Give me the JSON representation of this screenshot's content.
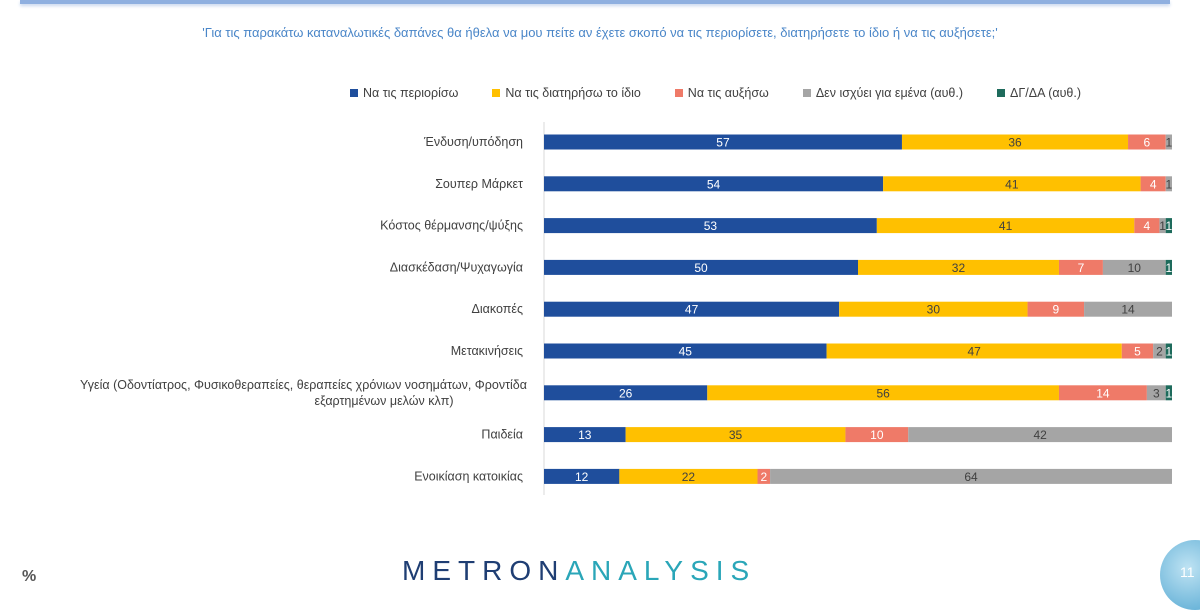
{
  "header": {
    "title": "'Για τις παρακάτω καταναλωτικές δαπάνες θα ήθελα να μου πείτε αν έχετε σκοπό να τις περιορίσετε, διατηρήσετε το ίδιο ή να τις αυξήσετε;'"
  },
  "footer": {
    "logo_a": "METRON",
    "logo_b": "ANALYSIS",
    "percent_symbol": "%",
    "page_number": "11"
  },
  "chart_data": {
    "type": "bar",
    "orientation": "horizontal",
    "stacked": true,
    "legend_position": "top",
    "grid": false,
    "xlim": [
      0,
      100
    ],
    "categories": [
      "Ένδυση/υπόδηση",
      "Σουπερ Μάρκετ",
      "Κόστος θέρμανσης/ψύξης",
      "Διασκέδαση/Ψυχαγωγία",
      "Διακοπές",
      "Μετακινήσεις",
      "Υγεία (Οδοντίατρος, Φυσικοθεραπείες, θεραπείες χρόνιων νοσημάτων, Φροντίδα εξαρτημένων μελών κλπ)",
      "Παιδεία",
      "Ενοικίαση κατοικίας"
    ],
    "series": [
      {
        "name": "Να τις περιορίσω",
        "color": "#1f4e9c",
        "label_color": "#ffffff",
        "values": [
          57,
          54,
          53,
          50,
          47,
          45,
          26,
          13,
          12
        ]
      },
      {
        "name": "Να τις διατηρήσω το ίδιο",
        "color": "#ffc000",
        "label_color": "#404040",
        "values": [
          36,
          41,
          41,
          32,
          30,
          47,
          56,
          35,
          22
        ]
      },
      {
        "name": "Να τις αυξήσω",
        "color": "#ef7a68",
        "label_color": "#ffffff",
        "values": [
          6,
          4,
          4,
          7,
          9,
          5,
          14,
          10,
          2
        ]
      },
      {
        "name": "Δεν ισχύει για εμένα (αυθ.)",
        "color": "#a5a5a5",
        "label_color": "#404040",
        "values": [
          1,
          1,
          1,
          10,
          14,
          2,
          3,
          42,
          64
        ]
      },
      {
        "name": "ΔΓ/ΔΑ (αυθ.)",
        "color": "#1e6b5c",
        "label_color": "#ffffff",
        "values": [
          0,
          0,
          1,
          1,
          0,
          1,
          1,
          0,
          0
        ]
      }
    ]
  }
}
